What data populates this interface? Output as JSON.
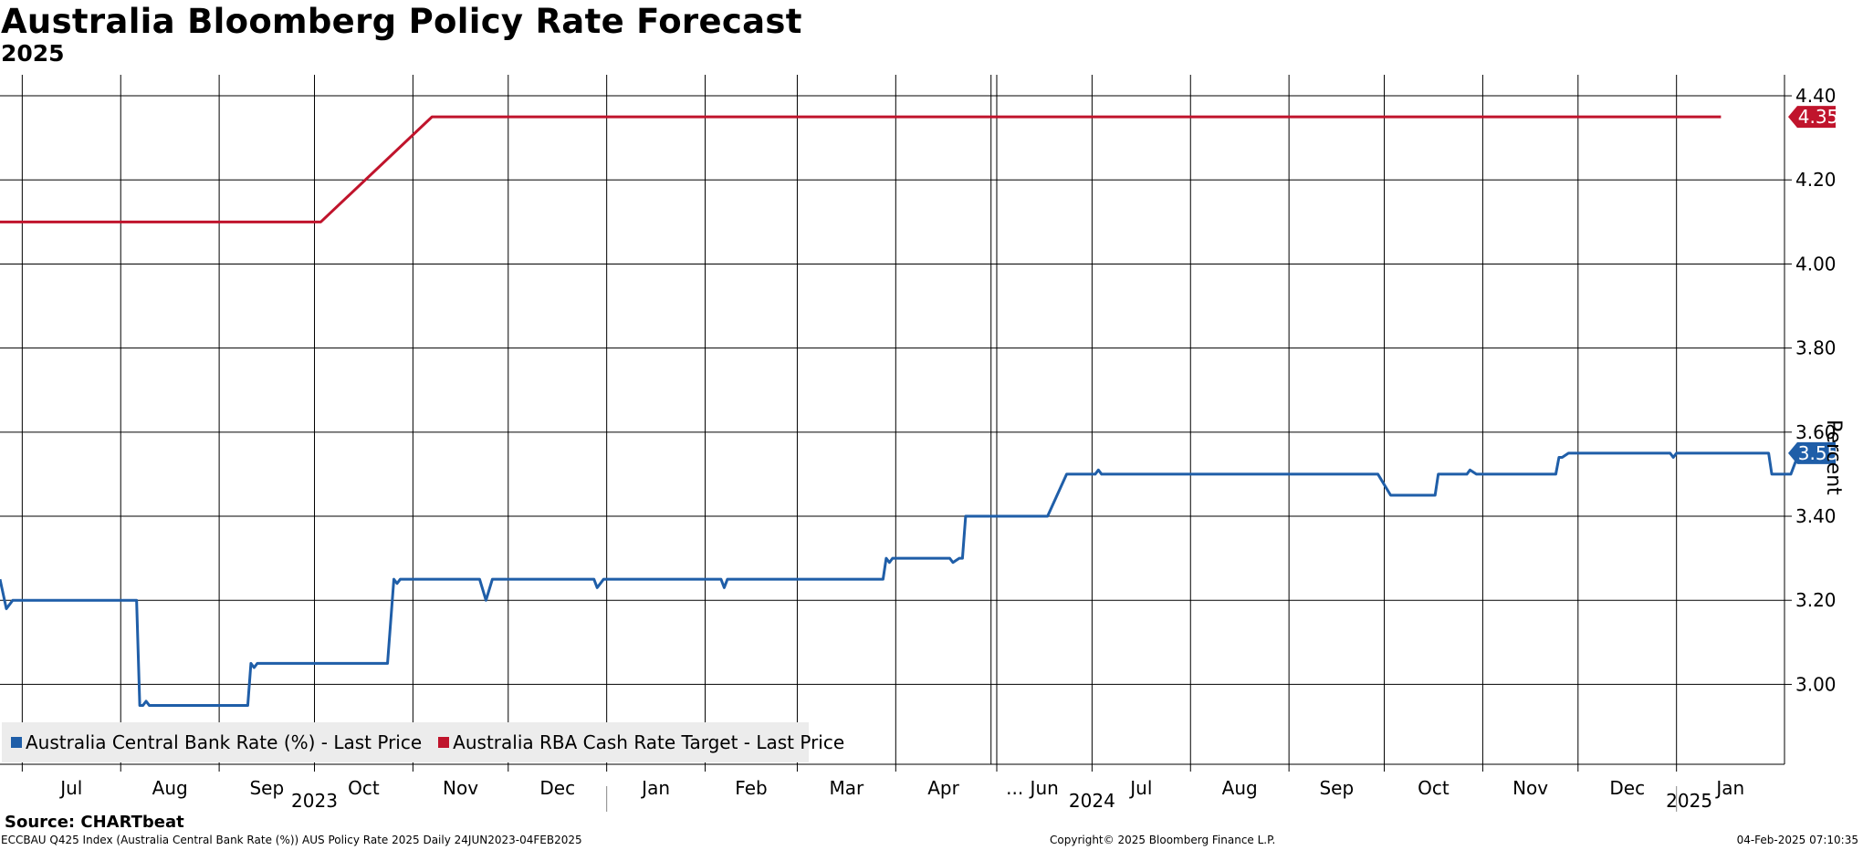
{
  "header": {
    "title": "Australia Bloomberg Policy Rate Forecast",
    "subtitle": "2025"
  },
  "source": "Source: CHARTbeat",
  "footer": {
    "left": "ECCBAU Q425 Index (Australia Central Bank Rate (%)) AUS Policy Rate 2025  Daily 24JUN2023-04FEB2025",
    "center": "Copyright© 2025 Bloomberg Finance L.P.",
    "right": "04-Feb-2025 07:10:35"
  },
  "legend": [
    {
      "label": "Australia Central Bank Rate (%) - Last Price",
      "color": "#1f5ea8"
    },
    {
      "label": "Australia RBA Cash Rate Target - Last Price",
      "color": "#c0142c"
    }
  ],
  "chart_data": {
    "type": "line",
    "title": "Australia Bloomberg Policy Rate Forecast",
    "subtitle": "2025",
    "ylabel": "Percent",
    "ylim": [
      2.81,
      4.45
    ],
    "y_ticks": [
      3.0,
      3.2,
      3.4,
      3.6,
      3.8,
      4.0,
      4.2,
      4.4
    ],
    "y_tick_labels": [
      "3.00",
      "3.20",
      "3.40",
      "3.60",
      "3.80",
      "4.00",
      "4.20",
      "4.40"
    ],
    "x_domain": [
      "2023-06-24",
      "2025-02-04"
    ],
    "x_axis_break": {
      "from": "2024-05-01",
      "to": "2024-06-01",
      "label": "..."
    },
    "month_ticks": [
      {
        "label": "Jul",
        "date": "2023-07-01"
      },
      {
        "label": "Aug",
        "date": "2023-08-01"
      },
      {
        "label": "Sep",
        "date": "2023-09-01"
      },
      {
        "label": "Oct",
        "date": "2023-10-01"
      },
      {
        "label": "Nov",
        "date": "2023-11-01"
      },
      {
        "label": "Dec",
        "date": "2023-12-01"
      },
      {
        "label": "Jan",
        "date": "2024-01-01"
      },
      {
        "label": "Feb",
        "date": "2024-02-01"
      },
      {
        "label": "Mar",
        "date": "2024-03-01"
      },
      {
        "label": "Apr",
        "date": "2024-04-01"
      },
      {
        "label": "Jun",
        "date": "2024-06-01"
      },
      {
        "label": "Jul",
        "date": "2024-07-01"
      },
      {
        "label": "Aug",
        "date": "2024-08-01"
      },
      {
        "label": "Sep",
        "date": "2024-09-01"
      },
      {
        "label": "Oct",
        "date": "2024-10-01"
      },
      {
        "label": "Nov",
        "date": "2024-11-01"
      },
      {
        "label": "Dec",
        "date": "2024-12-01"
      },
      {
        "label": "Jan",
        "date": "2025-01-01"
      }
    ],
    "year_labels": [
      {
        "label": "2023",
        "center": "2023-10-01"
      },
      {
        "label": "2024",
        "center": "2024-07-01"
      },
      {
        "label": "2025",
        "center": "2025-01-05"
      }
    ],
    "year_boundaries": [
      "2024-01-01",
      "2025-01-01"
    ],
    "series": [
      {
        "name": "Australia Central Bank Rate (%) - Last Price",
        "color": "#1f5ea8",
        "last_value_label": "3.55",
        "points": [
          [
            "2023-06-24",
            3.25
          ],
          [
            "2023-06-26",
            3.18
          ],
          [
            "2023-06-28",
            3.2
          ],
          [
            "2023-08-06",
            3.2
          ],
          [
            "2023-08-07",
            2.95
          ],
          [
            "2023-08-08",
            2.95
          ],
          [
            "2023-08-09",
            2.96
          ],
          [
            "2023-08-10",
            2.95
          ],
          [
            "2023-09-10",
            2.95
          ],
          [
            "2023-09-11",
            3.05
          ],
          [
            "2023-09-12",
            3.04
          ],
          [
            "2023-09-13",
            3.05
          ],
          [
            "2023-10-24",
            3.05
          ],
          [
            "2023-10-26",
            3.25
          ],
          [
            "2023-10-27",
            3.24
          ],
          [
            "2023-10-28",
            3.25
          ],
          [
            "2023-11-22",
            3.25
          ],
          [
            "2023-11-24",
            3.2
          ],
          [
            "2023-11-26",
            3.25
          ],
          [
            "2023-12-28",
            3.25
          ],
          [
            "2023-12-29",
            3.23
          ],
          [
            "2023-12-31",
            3.25
          ],
          [
            "2024-02-06",
            3.25
          ],
          [
            "2024-02-07",
            3.23
          ],
          [
            "2024-02-08",
            3.25
          ],
          [
            "2024-03-28",
            3.25
          ],
          [
            "2024-03-29",
            3.3
          ],
          [
            "2024-03-30",
            3.29
          ],
          [
            "2024-03-31",
            3.3
          ],
          [
            "2024-04-18",
            3.3
          ],
          [
            "2024-04-19",
            3.29
          ],
          [
            "2024-04-21",
            3.3
          ],
          [
            "2024-04-22",
            3.3
          ],
          [
            "2024-04-23",
            3.4
          ],
          [
            "2024-06-17",
            3.4
          ],
          [
            "2024-06-23",
            3.5
          ],
          [
            "2024-07-02",
            3.5
          ],
          [
            "2024-07-03",
            3.51
          ],
          [
            "2024-07-04",
            3.5
          ],
          [
            "2024-09-29",
            3.5
          ],
          [
            "2024-10-03",
            3.45
          ],
          [
            "2024-10-17",
            3.45
          ],
          [
            "2024-10-18",
            3.5
          ],
          [
            "2024-10-27",
            3.5
          ],
          [
            "2024-10-28",
            3.51
          ],
          [
            "2024-10-30",
            3.5
          ],
          [
            "2024-11-24",
            3.5
          ],
          [
            "2024-11-25",
            3.54
          ],
          [
            "2024-11-26",
            3.54
          ],
          [
            "2024-11-28",
            3.55
          ],
          [
            "2024-12-30",
            3.55
          ],
          [
            "2024-12-31",
            3.54
          ],
          [
            "2025-01-01",
            3.55
          ],
          [
            "2025-01-30",
            3.55
          ],
          [
            "2025-01-31",
            3.5
          ],
          [
            "2025-02-06",
            3.5
          ],
          [
            "2025-02-08",
            3.54
          ],
          [
            "2025-02-09",
            3.54
          ],
          [
            "2025-02-10",
            3.56
          ],
          [
            "2025-02-11",
            3.55
          ],
          [
            "2025-02-20",
            3.55
          ]
        ]
      },
      {
        "name": "Australia RBA Cash Rate Target - Last Price",
        "color": "#c0142c",
        "last_value_label": "4.35",
        "points": [
          [
            "2023-06-24",
            4.1
          ],
          [
            "2023-10-03",
            4.1
          ],
          [
            "2023-11-07",
            4.35
          ],
          [
            "2025-01-15",
            4.35
          ]
        ]
      }
    ],
    "grid": true,
    "legend_position": "bottom-left"
  }
}
